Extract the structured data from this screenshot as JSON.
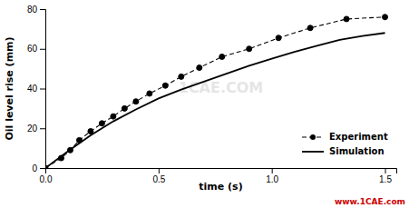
{
  "chart_data": {
    "type": "line",
    "xlabel": "time (s)",
    "ylabel": "Oil level rise (mm)",
    "series": [
      {
        "name": "Experiment",
        "color": "#000000",
        "line_style": "dashed",
        "marker": "circle",
        "x": [
          0.0,
          0.07,
          0.11,
          0.15,
          0.2,
          0.25,
          0.3,
          0.35,
          0.4,
          0.46,
          0.53,
          0.6,
          0.68,
          0.78,
          0.9,
          1.03,
          1.17,
          1.33,
          1.5
        ],
        "values": [
          0.0,
          5.0,
          9.0,
          14.0,
          18.5,
          22.5,
          26.0,
          30.0,
          33.5,
          37.5,
          41.5,
          46.0,
          50.5,
          56.0,
          60.0,
          65.5,
          70.5,
          75.0,
          76.0
        ]
      },
      {
        "name": "Simulation",
        "color": "#000000",
        "line_style": "solid",
        "x": [
          0.0,
          0.1,
          0.2,
          0.3,
          0.4,
          0.5,
          0.6,
          0.7,
          0.8,
          0.9,
          1.0,
          1.1,
          1.2,
          1.3,
          1.4,
          1.5
        ],
        "values": [
          0.0,
          8.5,
          16.5,
          23.5,
          29.5,
          35.0,
          39.5,
          43.5,
          47.5,
          51.5,
          55.0,
          58.5,
          61.5,
          64.5,
          66.5,
          68.0
        ]
      }
    ],
    "xlim": [
      0,
      1.55
    ],
    "ylim": [
      0,
      80
    ],
    "xticks": [
      {
        "value": 0,
        "label": "0.0"
      },
      0.5,
      {
        "value": 1,
        "label": "1.0"
      },
      1.5
    ],
    "yticks": [
      0,
      20,
      40,
      60,
      80
    ],
    "grid": false,
    "legend": "lower right",
    "annotations": [
      {
        "text": "1CAE.COM"
      },
      {
        "text": "www.1CAE.com",
        "color": "#cc0000"
      }
    ]
  }
}
